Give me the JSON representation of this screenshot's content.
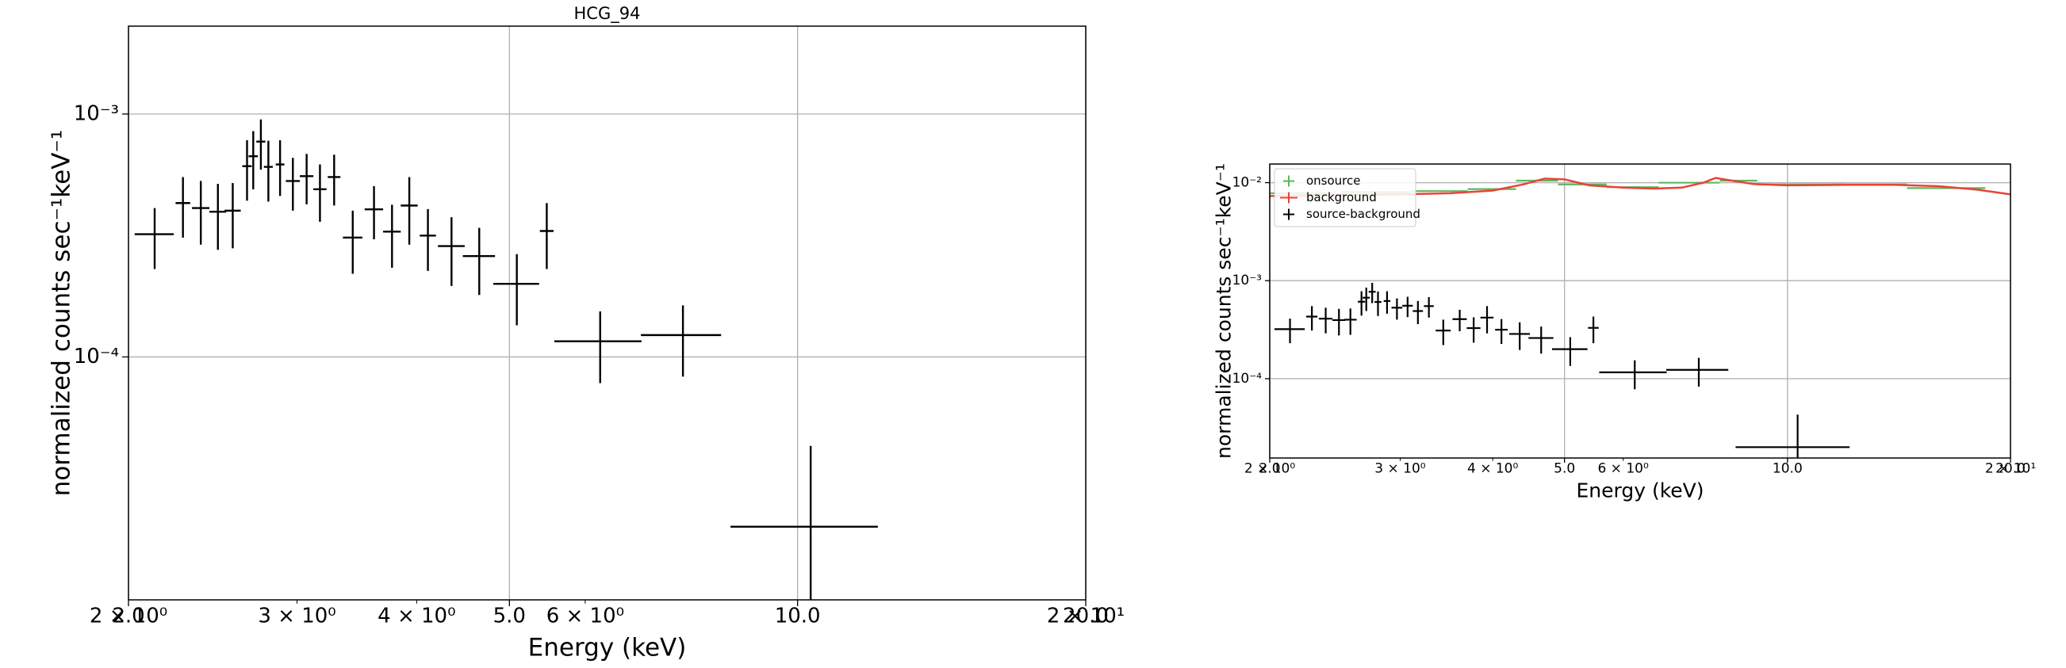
{
  "chart_data": [
    {
      "type": "errorbar",
      "title": "HCG_94",
      "xlabel": "Energy (keV)",
      "ylabel": "normalized counts sec⁻¹keV⁻¹",
      "xscale": "log",
      "yscale": "log",
      "grid": true,
      "xlim": [
        2.0,
        20.0
      ],
      "ylim": [
        1e-05,
        0.0023
      ],
      "xticks": [
        {
          "value": 2.0,
          "label": "2.0"
        },
        {
          "value": 5.0,
          "label": "5.0"
        },
        {
          "value": 10.0,
          "label": "10.0"
        },
        {
          "value": 20.0,
          "label": "20.0"
        }
      ],
      "xticks_minor": [
        {
          "value": 2,
          "label": "2 × 10⁰"
        },
        {
          "value": 3,
          "label": "3 × 10⁰"
        },
        {
          "value": 4,
          "label": "4 × 10⁰"
        },
        {
          "value": 6,
          "label": "6 × 10⁰"
        },
        {
          "value": 20,
          "label": "2 × 10¹"
        }
      ],
      "yticks": [
        {
          "value": 0.001,
          "label": "10⁻³"
        },
        {
          "value": 0.0001,
          "label": "10⁻⁴"
        }
      ],
      "series": [
        {
          "color": "#000000",
          "x": [
            2.13,
            2.28,
            2.38,
            2.48,
            2.57,
            2.66,
            2.7,
            2.75,
            2.8,
            2.88,
            2.97,
            3.07,
            3.17,
            3.28,
            3.43,
            3.61,
            3.77,
            3.93,
            4.11,
            4.35,
            4.65,
            5.09,
            5.47,
            6.22,
            7.59,
            10.32
          ],
          "xerr": [
            0.1,
            0.04,
            0.05,
            0.05,
            0.05,
            0.03,
            0.03,
            0.03,
            0.03,
            0.03,
            0.05,
            0.05,
            0.05,
            0.05,
            0.08,
            0.08,
            0.08,
            0.08,
            0.08,
            0.14,
            0.18,
            0.28,
            0.09,
            0.65,
            0.73,
            1.81
          ],
          "values": [
            0.00032,
            0.00043,
            0.00041,
            0.000396,
            0.0004,
            0.00061,
            0.00067,
            0.00077,
            0.000606,
            0.00062,
            0.00053,
            0.000555,
            0.00049,
            0.00055,
            0.00031,
            0.000405,
            0.000328,
            0.00042,
            0.000316,
            0.000286,
            0.00026,
            0.0002,
            0.00033,
            0.000116,
            0.000123,
            2e-05
          ],
          "yerr": [
            9e-05,
            0.00012,
            0.00012,
            0.00012,
            0.00012,
            0.00017,
            0.00018,
            0.00018,
            0.00017,
            0.00016,
            0.00013,
            0.00013,
            0.00013,
            0.00013,
            9e-05,
            0.0001,
            9.5e-05,
            0.00013,
            9e-05,
            9e-05,
            8e-05,
            6.5e-05,
            0.0001,
            3.8e-05,
            4e-05,
            2.3e-05
          ]
        }
      ]
    },
    {
      "type": "errorbar",
      "xlabel": "Energy (keV)",
      "ylabel": "normalized counts sec⁻¹keV⁻¹",
      "xscale": "log",
      "yscale": "log",
      "grid": true,
      "legend": "upper left",
      "xlim": [
        2.0,
        20.0
      ],
      "ylim": [
        1.55e-05,
        0.0155
      ],
      "xticks": [
        {
          "value": 2.0,
          "label": "2.0"
        },
        {
          "value": 5.0,
          "label": "5.0"
        },
        {
          "value": 10.0,
          "label": "10.0"
        },
        {
          "value": 20.0,
          "label": "20.0"
        }
      ],
      "xticks_minor": [
        {
          "value": 2,
          "label": "2 × 10⁰"
        },
        {
          "value": 3,
          "label": "3 × 10⁰"
        },
        {
          "value": 4,
          "label": "4 × 10⁰"
        },
        {
          "value": 6,
          "label": "6 × 10⁰"
        },
        {
          "value": 20,
          "label": "2 × 10¹"
        }
      ],
      "yticks": [
        {
          "value": 0.01,
          "label": "10⁻²"
        },
        {
          "value": 0.001,
          "label": "10⁻³"
        },
        {
          "value": 0.0001,
          "label": "10⁻⁴"
        }
      ],
      "series": [
        {
          "name": "onsource",
          "color": "#5cb85c",
          "x": [
            2.2,
            2.8,
            3.4,
            4.0,
            4.6,
            5.3,
            6.2,
            7.4,
            8.6,
            10.5,
            13.0,
            16.5
          ],
          "xerr": [
            0.2,
            0.3,
            0.3,
            0.3,
            0.3,
            0.4,
            0.5,
            0.7,
            0.5,
            1.4,
            1.5,
            2.0
          ],
          "values": [
            0.0078,
            0.008,
            0.0082,
            0.0086,
            0.0105,
            0.0096,
            0.009,
            0.01,
            0.0105,
            0.0096,
            0.0096,
            0.0088
          ]
        },
        {
          "name": "background",
          "color": "#e8443a",
          "style": "line",
          "x": [
            2.0,
            2.5,
            3.0,
            3.5,
            4.0,
            4.4,
            4.7,
            5.0,
            5.4,
            6.0,
            6.6,
            7.2,
            7.7,
            8.0,
            8.4,
            9.0,
            10.0,
            12.0,
            14.0,
            16.0,
            18.0,
            20.0
          ],
          "values": [
            0.0073,
            0.0075,
            0.0076,
            0.0078,
            0.0083,
            0.0096,
            0.011,
            0.0108,
            0.0094,
            0.0089,
            0.0087,
            0.0089,
            0.01,
            0.0112,
            0.0105,
            0.0097,
            0.0094,
            0.0095,
            0.0095,
            0.0092,
            0.0085,
            0.0076
          ]
        },
        {
          "name": "source-background",
          "color": "#000000",
          "x": [
            2.13,
            2.28,
            2.38,
            2.48,
            2.57,
            2.66,
            2.7,
            2.75,
            2.8,
            2.88,
            2.97,
            3.07,
            3.17,
            3.28,
            3.43,
            3.61,
            3.77,
            3.93,
            4.11,
            4.35,
            4.65,
            5.09,
            5.47,
            6.22,
            7.59,
            10.32
          ],
          "xerr": [
            0.1,
            0.04,
            0.05,
            0.05,
            0.05,
            0.03,
            0.03,
            0.03,
            0.03,
            0.03,
            0.05,
            0.05,
            0.05,
            0.05,
            0.08,
            0.08,
            0.08,
            0.08,
            0.08,
            0.14,
            0.18,
            0.28,
            0.09,
            0.65,
            0.73,
            1.81
          ],
          "values": [
            0.00032,
            0.00043,
            0.00041,
            0.000396,
            0.0004,
            0.00061,
            0.00067,
            0.00077,
            0.000606,
            0.00062,
            0.00053,
            0.000555,
            0.00049,
            0.00055,
            0.00031,
            0.000405,
            0.000328,
            0.00042,
            0.000316,
            0.000286,
            0.00026,
            0.0002,
            0.00033,
            0.000116,
            0.000123,
            2e-05
          ],
          "yerr": [
            9e-05,
            0.00012,
            0.00012,
            0.00012,
            0.00012,
            0.00017,
            0.00018,
            0.00018,
            0.00017,
            0.00016,
            0.00013,
            0.00013,
            0.00013,
            0.00013,
            9e-05,
            0.0001,
            9.5e-05,
            0.00013,
            9e-05,
            9e-05,
            8e-05,
            6.5e-05,
            0.0001,
            3.8e-05,
            4e-05,
            2.3e-05
          ]
        }
      ]
    }
  ]
}
